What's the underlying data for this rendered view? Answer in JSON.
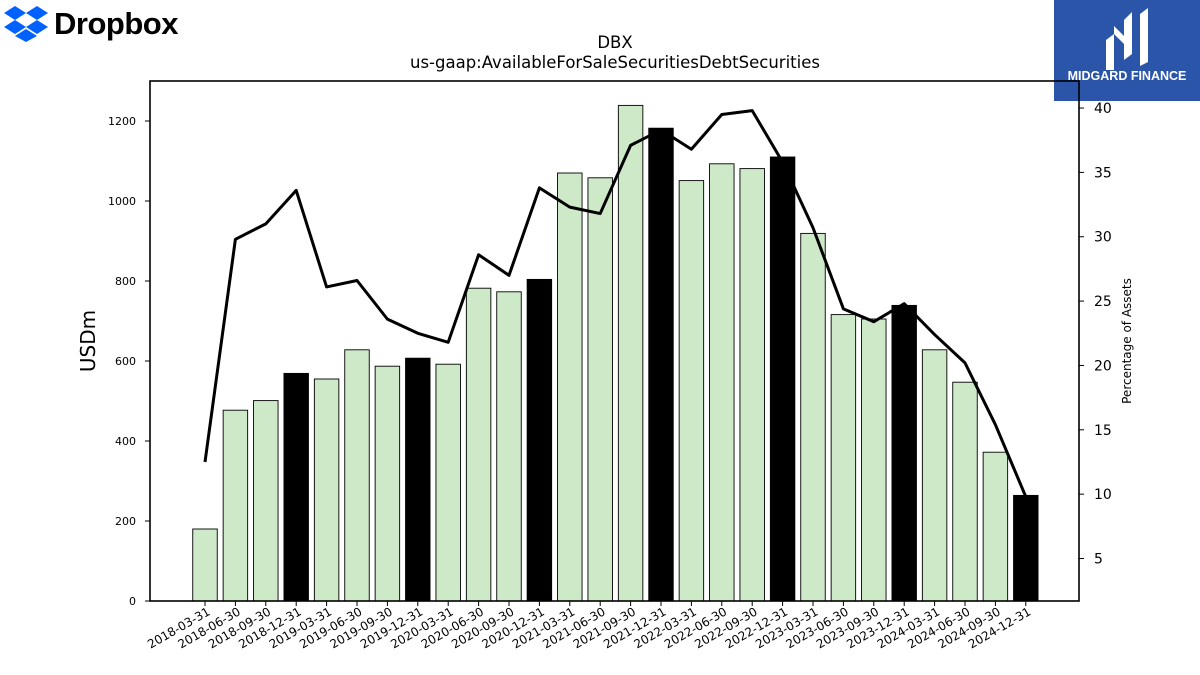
{
  "logos": {
    "left_wordmark": "Dropbox",
    "left_icon": "dropbox-icon",
    "right_brand": "MIDGARD FINANCE",
    "right_icon": "midgard-m-icon"
  },
  "chart_data": {
    "type": "bar",
    "title": "DBX",
    "subtitle": "us-gaap:AvailableForSaleSecuritiesDebtSecurities",
    "ylabel": "USDm",
    "ylabel_right": "Percentage of Assets",
    "ylim": [
      0,
      1300
    ],
    "ylim_right": [
      1.7,
      42.1
    ],
    "yticks": [
      0,
      200,
      400,
      600,
      800,
      1000,
      1200
    ],
    "yticks_right": [
      5,
      10,
      15,
      20,
      25,
      30,
      35,
      40
    ],
    "grid": false,
    "categories": [
      "2018-03-31",
      "2018-06-30",
      "2018-09-30",
      "2018-12-31",
      "2019-03-31",
      "2019-06-30",
      "2019-09-30",
      "2019-12-31",
      "2020-03-31",
      "2020-06-30",
      "2020-09-30",
      "2020-12-31",
      "2021-03-31",
      "2021-06-30",
      "2021-09-30",
      "2021-12-31",
      "2022-03-31",
      "2022-06-30",
      "2022-09-30",
      "2022-12-31",
      "2023-03-31",
      "2023-06-30",
      "2023-09-30",
      "2023-12-31",
      "2024-03-31",
      "2024-06-30",
      "2024-09-30",
      "2024-12-31"
    ],
    "series": [
      {
        "values": [
          180,
          477,
          501,
          569,
          555,
          628,
          587,
          607,
          592,
          782,
          773,
          804,
          1070,
          1058,
          1239,
          1182,
          1051,
          1093,
          1081,
          1110,
          919,
          716,
          705,
          739,
          628,
          547,
          372,
          264
        ]
      },
      {
        "axis": "right",
        "type": "line",
        "values": [
          12.5,
          29.8,
          31.0,
          33.6,
          26.1,
          26.6,
          23.6,
          22.5,
          21.8,
          28.6,
          27.0,
          33.8,
          32.3,
          31.8,
          37.1,
          38.3,
          36.8,
          39.5,
          39.8,
          35.8,
          30.7,
          24.4,
          23.4,
          24.8,
          22.4,
          20.2,
          15.4,
          9.8
        ]
      }
    ],
    "colors": {
      "bar": "#cde9c8",
      "bar_year_end": "#000000",
      "line": "#000000"
    }
  }
}
